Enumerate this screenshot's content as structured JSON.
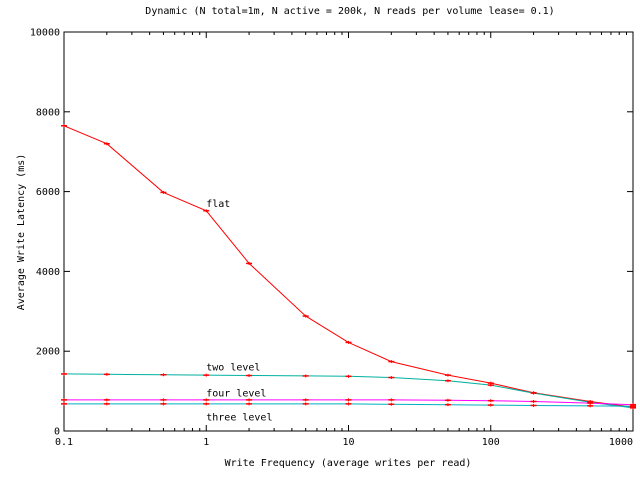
{
  "chart_data": {
    "type": "line",
    "title": "Dynamic (N total=1m, N active = 200k,  N reads per volume lease= 0.1)",
    "xlabel": "Write Frequency (average writes per read)",
    "ylabel": "Average Write Latency (ms)",
    "xscale": "log",
    "xlim": [
      0.1,
      1000
    ],
    "ylim": [
      0,
      10000
    ],
    "x_ticks": [
      {
        "value": 0.1,
        "label": "0.1"
      },
      {
        "value": 1,
        "label": "1"
      },
      {
        "value": 10,
        "label": "10"
      },
      {
        "value": 100,
        "label": "100"
      },
      {
        "value": 1000,
        "label": "1000"
      }
    ],
    "y_ticks": [
      {
        "value": 0,
        "label": "0"
      },
      {
        "value": 2000,
        "label": "2000"
      },
      {
        "value": 4000,
        "label": "4000"
      },
      {
        "value": 6000,
        "label": "6000"
      },
      {
        "value": 8000,
        "label": "8000"
      },
      {
        "value": 10000,
        "label": "10000"
      }
    ],
    "grid": false,
    "legend": "none",
    "x": [
      0.1,
      0.2,
      0.5,
      1,
      2,
      5,
      10,
      20,
      50,
      100,
      200,
      500,
      1000
    ],
    "series": [
      {
        "name": "flat",
        "color": "#ff0000",
        "label_at": [
          1,
          5700
        ],
        "values": [
          7650,
          7200,
          5980,
          5520,
          4200,
          2880,
          2220,
          1740,
          1400,
          1200,
          960,
          740,
          600
        ]
      },
      {
        "name": "two level",
        "color": "#00b0a0",
        "label_at": [
          1,
          1600
        ],
        "values": [
          1430,
          1420,
          1410,
          1400,
          1390,
          1380,
          1370,
          1340,
          1260,
          1150,
          950,
          720,
          580
        ]
      },
      {
        "name": "four level",
        "color": "#ff00ff",
        "label_at": [
          1,
          950
        ],
        "values": [
          780,
          780,
          780,
          780,
          780,
          780,
          780,
          780,
          770,
          760,
          740,
          700,
          660
        ]
      },
      {
        "name": "three level",
        "color": "#00b0c0",
        "label_at": [
          1,
          350
        ],
        "values": [
          680,
          680,
          680,
          680,
          680,
          680,
          680,
          670,
          660,
          650,
          640,
          630,
          620
        ]
      }
    ]
  }
}
